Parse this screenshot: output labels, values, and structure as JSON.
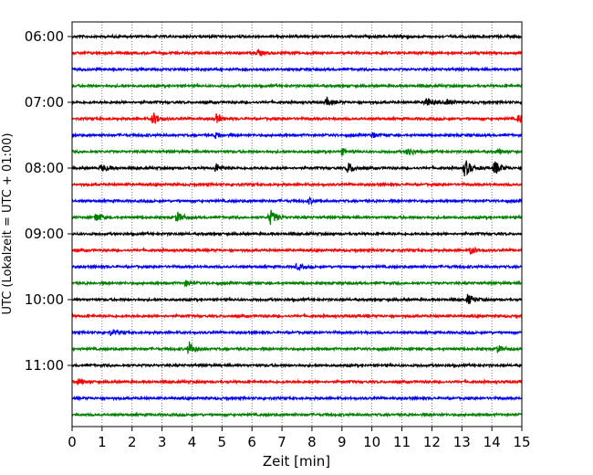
{
  "chart_data": {
    "type": "line",
    "title": "",
    "xlabel": "Zeit  [min]",
    "ylabel": "UTC (Lokalzeit = UTC + 01:00)",
    "xlim": [
      0,
      15
    ],
    "x_ticks": [
      0,
      1,
      2,
      3,
      4,
      5,
      6,
      7,
      8,
      9,
      10,
      11,
      12,
      13,
      14,
      15
    ],
    "y_tick_labels": [
      "06:00",
      "07:00",
      "08:00",
      "09:00",
      "10:00",
      "11:00"
    ],
    "grid": "vertical dotted",
    "legend": "none",
    "trace_interval_minutes": 15,
    "trace_colors": [
      "#000000",
      "#ff0000",
      "#0000ff",
      "#008000"
    ],
    "series": [
      {
        "start": "06:00",
        "events": [
          {
            "t": 11.0,
            "amp": 2
          }
        ]
      },
      {
        "start": "06:15",
        "events": [
          {
            "t": 6.2,
            "amp": 3
          }
        ]
      },
      {
        "start": "06:30",
        "events": []
      },
      {
        "start": "06:45",
        "events": []
      },
      {
        "start": "07:00",
        "events": [
          {
            "t": 8.5,
            "amp": 4
          },
          {
            "t": 11.8,
            "amp": 6
          },
          {
            "t": 12.5,
            "amp": 3
          }
        ]
      },
      {
        "start": "07:15",
        "events": [
          {
            "t": 2.7,
            "amp": 7
          },
          {
            "t": 4.8,
            "amp": 5
          },
          {
            "t": 14.9,
            "amp": 5
          }
        ]
      },
      {
        "start": "07:30",
        "events": [
          {
            "t": 4.8,
            "amp": 3
          },
          {
            "t": 10.0,
            "amp": 3
          }
        ]
      },
      {
        "start": "07:45",
        "events": [
          {
            "t": 9.0,
            "amp": 3
          },
          {
            "t": 11.2,
            "amp": 5
          },
          {
            "t": 14.2,
            "amp": 2
          }
        ]
      },
      {
        "start": "08:00",
        "events": [
          {
            "t": 1.0,
            "amp": 4
          },
          {
            "t": 4.8,
            "amp": 5
          },
          {
            "t": 9.2,
            "amp": 6
          },
          {
            "t": 13.1,
            "amp": 10
          },
          {
            "t": 14.1,
            "amp": 8
          }
        ]
      },
      {
        "start": "08:15",
        "events": []
      },
      {
        "start": "08:30",
        "events": [
          {
            "t": 7.9,
            "amp": 3
          }
        ]
      },
      {
        "start": "08:45",
        "events": [
          {
            "t": 0.8,
            "amp": 5
          },
          {
            "t": 3.5,
            "amp": 6
          },
          {
            "t": 6.6,
            "amp": 9
          }
        ]
      },
      {
        "start": "09:00",
        "events": []
      },
      {
        "start": "09:15",
        "events": [
          {
            "t": 13.3,
            "amp": 4
          }
        ]
      },
      {
        "start": "09:30",
        "events": [
          {
            "t": 7.5,
            "amp": 3
          }
        ]
      },
      {
        "start": "09:45",
        "events": [
          {
            "t": 3.8,
            "amp": 3
          }
        ]
      },
      {
        "start": "10:00",
        "events": [
          {
            "t": 13.2,
            "amp": 6
          }
        ]
      },
      {
        "start": "10:15",
        "events": []
      },
      {
        "start": "10:30",
        "events": [
          {
            "t": 1.3,
            "amp": 3
          }
        ]
      },
      {
        "start": "10:45",
        "events": [
          {
            "t": 3.9,
            "amp": 8
          },
          {
            "t": 14.2,
            "amp": 4
          }
        ]
      },
      {
        "start": "11:00",
        "events": []
      },
      {
        "start": "11:15",
        "events": [
          {
            "t": 0.2,
            "amp": 3
          }
        ]
      },
      {
        "start": "11:30",
        "events": []
      },
      {
        "start": "11:45",
        "events": []
      }
    ]
  }
}
